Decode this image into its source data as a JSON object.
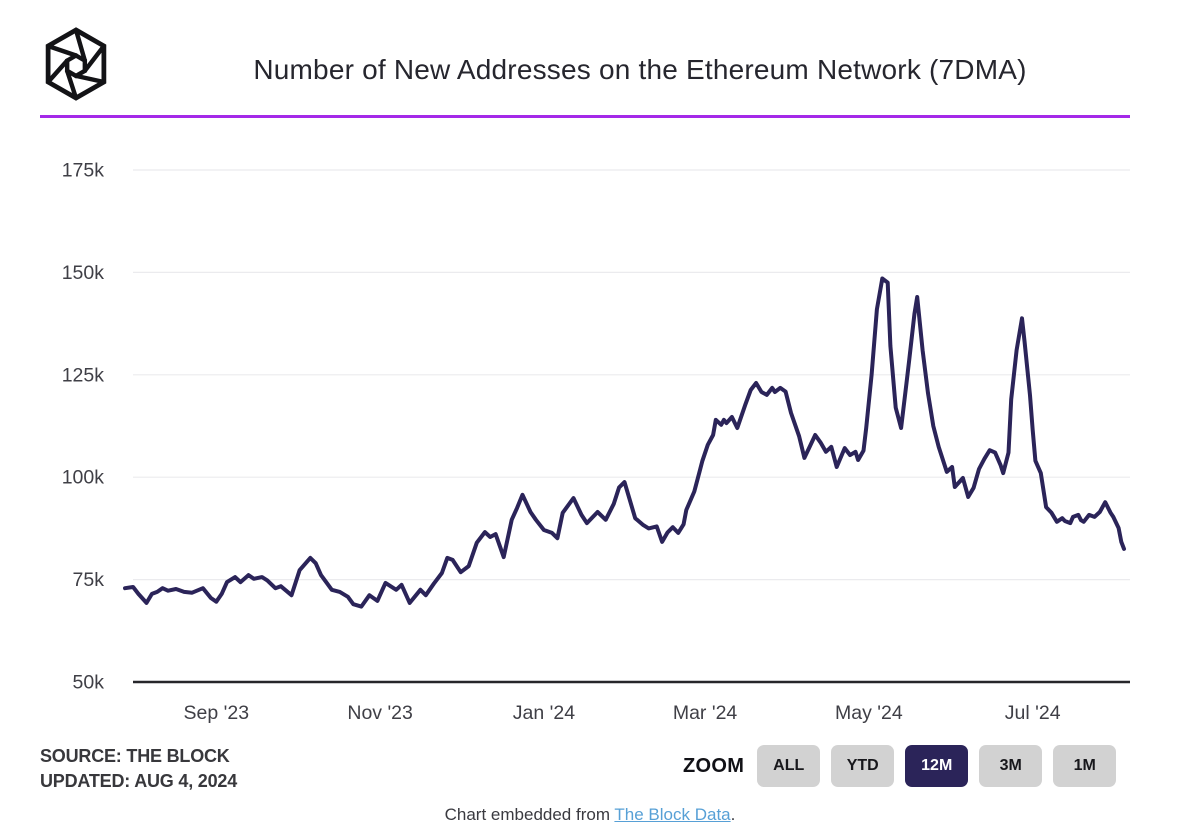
{
  "header": {
    "title": "Number of New Addresses on the Ethereum Network (7DMA)",
    "logo": "the-block-cube-logo"
  },
  "divider_color": "#a429e8",
  "source": {
    "line1": "SOURCE: THE BLOCK",
    "line2": "UPDATED: AUG 4, 2024"
  },
  "zoom": {
    "label": "ZOOM",
    "buttons": [
      "ALL",
      "YTD",
      "12M",
      "3M",
      "1M"
    ],
    "active_index": 2,
    "active_bg": "#2b2459",
    "inactive_bg": "#d2d2d2"
  },
  "embed_note": {
    "prefix": "Chart embedded from ",
    "link_text": "The Block Data",
    "suffix": ".",
    "link_color": "#57a0d6"
  },
  "chart_data": {
    "type": "line",
    "title": "Number of New Addresses on the Ethereum Network (7DMA)",
    "series_name": "New Addresses on the Ethereum Network (7DMA)",
    "line_color": "#2b2459",
    "grid": true,
    "gridline_color": "#ebebee",
    "axis_color": "#26262a",
    "tick_text_color": "#3f3f46",
    "ylim": [
      50000,
      175000
    ],
    "y_ticks": [
      {
        "label": "175k",
        "value": 175000
      },
      {
        "label": "150k",
        "value": 150000
      },
      {
        "label": "125k",
        "value": 125000
      },
      {
        "label": "100k",
        "value": 100000
      },
      {
        "label": "75k",
        "value": 75000
      },
      {
        "label": "50k",
        "value": 50000
      }
    ],
    "x_ticks": [
      {
        "label": "Sep '23",
        "date": "2023-09-01"
      },
      {
        "label": "Nov '23",
        "date": "2023-11-01"
      },
      {
        "label": "Jan '24",
        "date": "2024-01-01"
      },
      {
        "label": "Mar '24",
        "date": "2024-03-01"
      },
      {
        "label": "May '24",
        "date": "2024-05-01"
      },
      {
        "label": "Jul '24",
        "date": "2024-07-01"
      }
    ],
    "points": [
      [
        "2023-07-29",
        72900
      ],
      [
        "2023-08-01",
        73200
      ],
      [
        "2023-08-03",
        71500
      ],
      [
        "2023-08-06",
        69300
      ],
      [
        "2023-08-08",
        71500
      ],
      [
        "2023-08-10",
        72000
      ],
      [
        "2023-08-12",
        72900
      ],
      [
        "2023-08-14",
        72300
      ],
      [
        "2023-08-17",
        72700
      ],
      [
        "2023-08-20",
        72000
      ],
      [
        "2023-08-23",
        71800
      ],
      [
        "2023-08-27",
        72900
      ],
      [
        "2023-08-30",
        70500
      ],
      [
        "2023-09-01",
        69600
      ],
      [
        "2023-09-03",
        71500
      ],
      [
        "2023-09-05",
        74400
      ],
      [
        "2023-09-08",
        75600
      ],
      [
        "2023-09-10",
        74400
      ],
      [
        "2023-09-13",
        76100
      ],
      [
        "2023-09-15",
        75200
      ],
      [
        "2023-09-18",
        75600
      ],
      [
        "2023-09-20",
        74800
      ],
      [
        "2023-09-23",
        72900
      ],
      [
        "2023-09-25",
        73400
      ],
      [
        "2023-09-29",
        71200
      ],
      [
        "2023-10-02",
        77300
      ],
      [
        "2023-10-06",
        80300
      ],
      [
        "2023-10-08",
        79000
      ],
      [
        "2023-10-10",
        76100
      ],
      [
        "2023-10-14",
        72500
      ],
      [
        "2023-10-17",
        72000
      ],
      [
        "2023-10-20",
        70800
      ],
      [
        "2023-10-22",
        69000
      ],
      [
        "2023-10-25",
        68400
      ],
      [
        "2023-10-28",
        71200
      ],
      [
        "2023-10-31",
        69800
      ],
      [
        "2023-11-03",
        74200
      ],
      [
        "2023-11-07",
        72500
      ],
      [
        "2023-11-09",
        73700
      ],
      [
        "2023-11-12",
        69300
      ],
      [
        "2023-11-16",
        72500
      ],
      [
        "2023-11-18",
        71200
      ],
      [
        "2023-11-21",
        74000
      ],
      [
        "2023-11-24",
        76600
      ],
      [
        "2023-11-26",
        80300
      ],
      [
        "2023-11-28",
        79800
      ],
      [
        "2023-12-01",
        76800
      ],
      [
        "2023-12-04",
        78300
      ],
      [
        "2023-12-07",
        84000
      ],
      [
        "2023-12-10",
        86600
      ],
      [
        "2023-12-12",
        85400
      ],
      [
        "2023-12-14",
        86100
      ],
      [
        "2023-12-17",
        80500
      ],
      [
        "2023-12-20",
        89600
      ],
      [
        "2023-12-22",
        92500
      ],
      [
        "2023-12-24",
        95700
      ],
      [
        "2023-12-27",
        91500
      ],
      [
        "2023-12-29",
        89600
      ],
      [
        "2024-01-01",
        87100
      ],
      [
        "2024-01-04",
        86400
      ],
      [
        "2024-01-06",
        85100
      ],
      [
        "2024-01-08",
        91300
      ],
      [
        "2024-01-12",
        94900
      ],
      [
        "2024-01-15",
        90800
      ],
      [
        "2024-01-17",
        88800
      ],
      [
        "2024-01-21",
        91500
      ],
      [
        "2024-01-24",
        89600
      ],
      [
        "2024-01-27",
        93500
      ],
      [
        "2024-01-29",
        97500
      ],
      [
        "2024-01-31",
        98800
      ],
      [
        "2024-02-04",
        90000
      ],
      [
        "2024-02-07",
        88300
      ],
      [
        "2024-02-09",
        87500
      ],
      [
        "2024-02-12",
        88000
      ],
      [
        "2024-02-14",
        84200
      ],
      [
        "2024-02-16",
        86500
      ],
      [
        "2024-02-18",
        87800
      ],
      [
        "2024-02-20",
        86400
      ],
      [
        "2024-02-22",
        88500
      ],
      [
        "2024-02-23",
        92000
      ],
      [
        "2024-02-26",
        96500
      ],
      [
        "2024-02-28",
        101500
      ],
      [
        "2024-02-29",
        104000
      ],
      [
        "2024-03-02",
        107900
      ],
      [
        "2024-03-04",
        110300
      ],
      [
        "2024-03-05",
        114000
      ],
      [
        "2024-03-07",
        112800
      ],
      [
        "2024-03-08",
        114000
      ],
      [
        "2024-03-09",
        113200
      ],
      [
        "2024-03-11",
        114700
      ],
      [
        "2024-03-13",
        112000
      ],
      [
        "2024-03-16",
        117700
      ],
      [
        "2024-03-18",
        121300
      ],
      [
        "2024-03-20",
        123000
      ],
      [
        "2024-03-22",
        120800
      ],
      [
        "2024-03-24",
        120100
      ],
      [
        "2024-03-26",
        121800
      ],
      [
        "2024-03-27",
        120800
      ],
      [
        "2024-03-29",
        121800
      ],
      [
        "2024-03-31",
        120900
      ],
      [
        "2024-04-02",
        115700
      ],
      [
        "2024-04-05",
        110000
      ],
      [
        "2024-04-07",
        104700
      ],
      [
        "2024-04-09",
        107500
      ],
      [
        "2024-04-11",
        110300
      ],
      [
        "2024-04-13",
        108500
      ],
      [
        "2024-04-15",
        106200
      ],
      [
        "2024-04-17",
        107400
      ],
      [
        "2024-04-19",
        102500
      ],
      [
        "2024-04-22",
        107100
      ],
      [
        "2024-04-24",
        105400
      ],
      [
        "2024-04-26",
        106200
      ],
      [
        "2024-04-27",
        104200
      ],
      [
        "2024-04-29",
        106500
      ],
      [
        "2024-04-30",
        112000
      ],
      [
        "2024-05-02",
        125000
      ],
      [
        "2024-05-04",
        141000
      ],
      [
        "2024-05-06",
        148500
      ],
      [
        "2024-05-08",
        147500
      ],
      [
        "2024-05-09",
        132000
      ],
      [
        "2024-05-11",
        117000
      ],
      [
        "2024-05-13",
        112000
      ],
      [
        "2024-05-15",
        123000
      ],
      [
        "2024-05-16",
        128600
      ],
      [
        "2024-05-18",
        140000
      ],
      [
        "2024-05-19",
        144000
      ],
      [
        "2024-05-21",
        131000
      ],
      [
        "2024-05-23",
        120500
      ],
      [
        "2024-05-25",
        112500
      ],
      [
        "2024-05-27",
        107400
      ],
      [
        "2024-05-30",
        101300
      ],
      [
        "2024-06-01",
        102500
      ],
      [
        "2024-06-02",
        97600
      ],
      [
        "2024-06-05",
        99800
      ],
      [
        "2024-06-07",
        95200
      ],
      [
        "2024-06-09",
        97400
      ],
      [
        "2024-06-11",
        102000
      ],
      [
        "2024-06-13",
        104500
      ],
      [
        "2024-06-15",
        106600
      ],
      [
        "2024-06-17",
        106000
      ],
      [
        "2024-06-19",
        103000
      ],
      [
        "2024-06-20",
        101000
      ],
      [
        "2024-06-22",
        106000
      ],
      [
        "2024-06-23",
        119000
      ],
      [
        "2024-06-25",
        131000
      ],
      [
        "2024-06-27",
        138800
      ],
      [
        "2024-06-28",
        133000
      ],
      [
        "2024-06-30",
        120000
      ],
      [
        "2024-07-01",
        111500
      ],
      [
        "2024-07-02",
        104000
      ],
      [
        "2024-07-04",
        101000
      ],
      [
        "2024-07-06",
        92700
      ],
      [
        "2024-07-08",
        91300
      ],
      [
        "2024-07-10",
        89100
      ],
      [
        "2024-07-12",
        90000
      ],
      [
        "2024-07-13",
        89300
      ],
      [
        "2024-07-15",
        88800
      ],
      [
        "2024-07-16",
        90300
      ],
      [
        "2024-07-18",
        90800
      ],
      [
        "2024-07-19",
        89500
      ],
      [
        "2024-07-20",
        89100
      ],
      [
        "2024-07-22",
        90800
      ],
      [
        "2024-07-24",
        90300
      ],
      [
        "2024-07-26",
        91500
      ],
      [
        "2024-07-28",
        93900
      ],
      [
        "2024-07-30",
        91300
      ],
      [
        "2024-07-31",
        90300
      ],
      [
        "2024-08-02",
        87600
      ],
      [
        "2024-08-03",
        84200
      ],
      [
        "2024-08-04",
        82500
      ]
    ]
  }
}
